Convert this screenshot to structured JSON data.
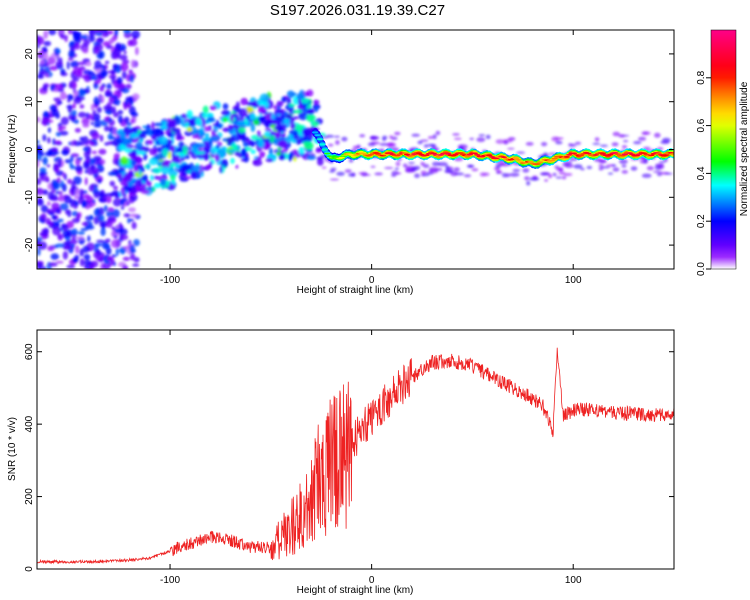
{
  "title": "S197.2026.031.19.39.C27",
  "chart_data": [
    {
      "type": "heatmap",
      "xlabel": "Height of straight line (km)",
      "ylabel": "Frequency (Hz)",
      "xlim": [
        -166,
        150
      ],
      "ylim": [
        -25,
        25
      ],
      "x_ticks": [
        -100,
        0,
        100
      ],
      "y_ticks": [
        -20,
        -10,
        0,
        10,
        20
      ],
      "colorbar": {
        "label": "Normalized spectral amplitude",
        "range": [
          0,
          1
        ],
        "ticks": [
          "0.0",
          "0.2",
          "0.4",
          "0.6",
          "0.8"
        ],
        "colors": [
          "#ffffff",
          "#8800ff",
          "#0000ff",
          "#00ffff",
          "#00ff00",
          "#ffff00",
          "#ff8800",
          "#ff0000",
          "#ff0088"
        ]
      },
      "ridge": {
        "x": [
          -166,
          -120,
          -100,
          -80,
          -60,
          -40,
          -30,
          -20,
          -10,
          0,
          20,
          50,
          70,
          80,
          90,
          100,
          150
        ],
        "freq": [
          0,
          -3,
          -1,
          2,
          4,
          5,
          5,
          -2,
          -1,
          -1,
          -1,
          -1,
          -2,
          -3,
          -2,
          -1,
          -1
        ],
        "amplitude": [
          0.15,
          0.3,
          0.3,
          0.35,
          0.35,
          0.3,
          0.3,
          0.5,
          0.7,
          0.8,
          0.85,
          0.85,
          0.8,
          0.7,
          0.8,
          0.85,
          0.85
        ]
      }
    },
    {
      "type": "line",
      "xlabel": "Height of straight line (km)",
      "ylabel": "SNR (10 * v/v)",
      "xlim": [
        -166,
        150
      ],
      "ylim": [
        0,
        660
      ],
      "x_ticks": [
        -100,
        0,
        100
      ],
      "y_ticks": [
        0,
        200,
        400,
        600
      ],
      "color": "#ee2222",
      "series": [
        {
          "name": "SNR",
          "x": [
            -166,
            -140,
            -120,
            -110,
            -100,
            -90,
            -80,
            -70,
            -60,
            -50,
            -40,
            -30,
            -25,
            -20,
            -15,
            -10,
            -5,
            0,
            10,
            20,
            30,
            40,
            50,
            60,
            70,
            80,
            85,
            90,
            92,
            95,
            100,
            110,
            120,
            130,
            140,
            150
          ],
          "y": [
            20,
            20,
            25,
            30,
            50,
            70,
            90,
            80,
            60,
            60,
            120,
            200,
            280,
            300,
            320,
            350,
            380,
            420,
            480,
            530,
            570,
            575,
            560,
            530,
            500,
            470,
            450,
            380,
            600,
            420,
            440,
            440,
            430,
            430,
            425,
            430
          ]
        }
      ]
    }
  ]
}
